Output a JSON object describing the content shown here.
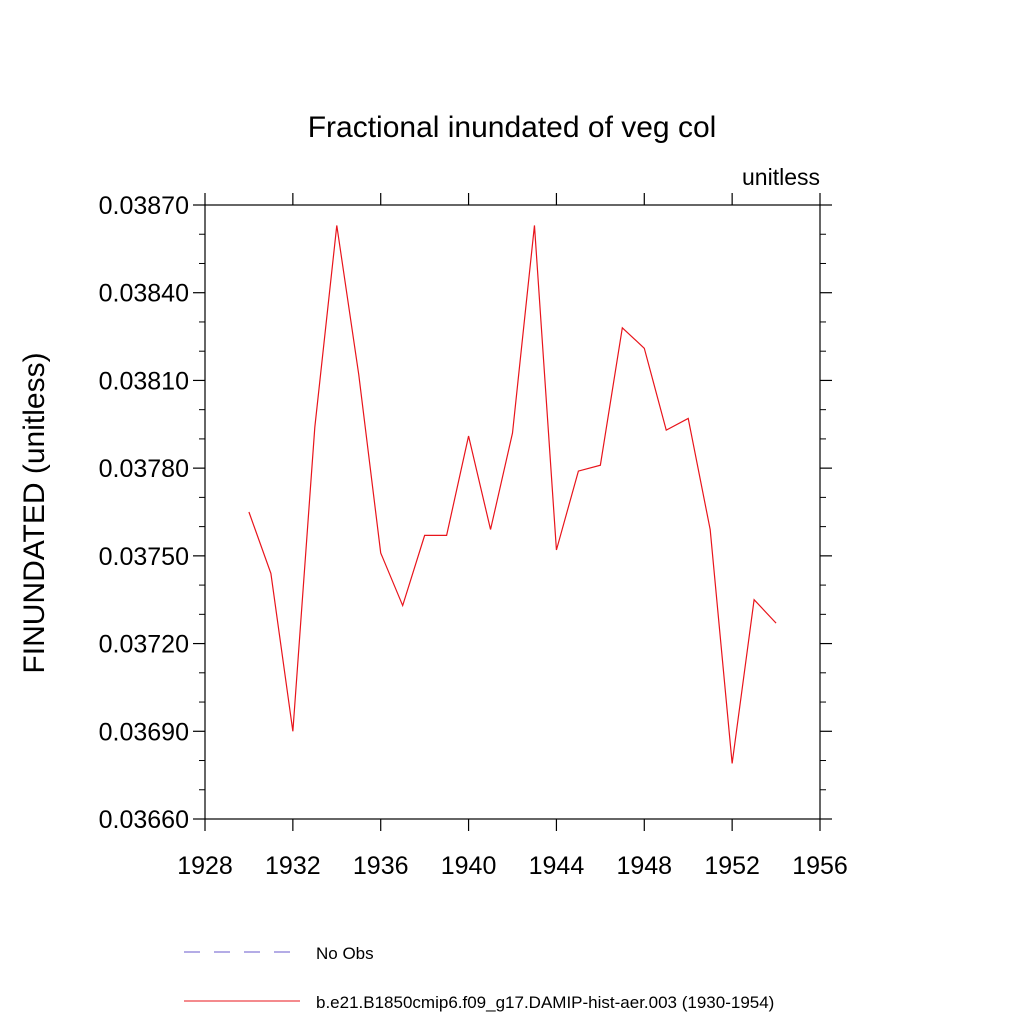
{
  "chart_data": {
    "type": "line",
    "title": "Fractional inundated of veg col",
    "units_label": "unitless",
    "ylabel": "FINUNDATED  (unitless)",
    "xlabel": "",
    "xlim": [
      1928,
      1956
    ],
    "ylim": [
      0.0366,
      0.0387
    ],
    "x_ticks": [
      1928,
      1932,
      1936,
      1940,
      1944,
      1948,
      1952,
      1956
    ],
    "y_ticks": [
      "0.03660",
      "0.03690",
      "0.03720",
      "0.03750",
      "0.03780",
      "0.03810",
      "0.03840",
      "0.03870"
    ],
    "grid": false,
    "legend_placement": "bottom",
    "series": [
      {
        "name": "b.e21.B1850cmip6.f09_g17.DAMIP-hist-aer.003 (1930-1954)",
        "color": "#e8141b",
        "style": "solid",
        "x": [
          1930,
          1931,
          1932,
          1933,
          1934,
          1935,
          1936,
          1937,
          1938,
          1939,
          1940,
          1941,
          1942,
          1943,
          1944,
          1945,
          1946,
          1947,
          1948,
          1949,
          1950,
          1951,
          1952,
          1953,
          1954
        ],
        "values": [
          0.03765,
          0.03744,
          0.0369,
          0.03794,
          0.03863,
          0.03812,
          0.03751,
          0.03733,
          0.03757,
          0.03757,
          0.03791,
          0.03759,
          0.03792,
          0.03863,
          0.03752,
          0.03779,
          0.03781,
          0.03828,
          0.03821,
          0.03793,
          0.03797,
          0.03759,
          0.03679,
          0.03735,
          0.03727
        ]
      }
    ],
    "legend": [
      {
        "label": "No Obs",
        "color": "#6a5acd",
        "style": "dashed"
      },
      {
        "label": "b.e21.B1850cmip6.f09_g17.DAMIP-hist-aer.003 (1930-1954)",
        "color": "#e8141b",
        "style": "solid"
      }
    ]
  }
}
